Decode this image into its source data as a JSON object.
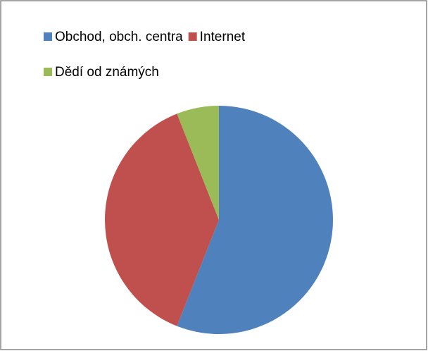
{
  "chart_data": {
    "type": "pie",
    "categories": [
      "Obchod, obch. centra",
      "Internet",
      "Dědí od známých"
    ],
    "values": [
      56,
      38,
      6
    ],
    "colors": [
      "#4f81bd",
      "#c0504d",
      "#9bbb59"
    ],
    "legend": "top"
  }
}
